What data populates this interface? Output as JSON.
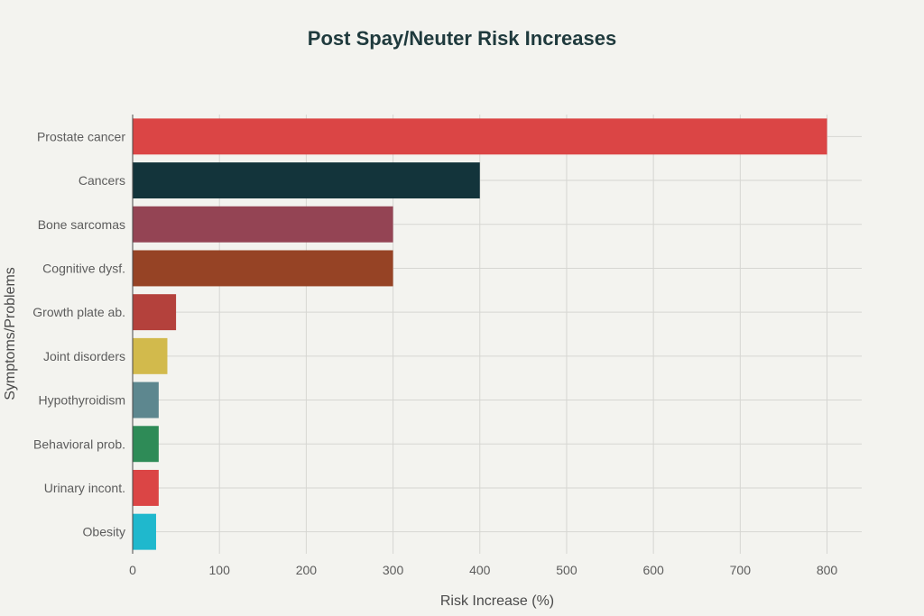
{
  "chart_data": {
    "type": "bar",
    "orientation": "horizontal",
    "title": "Post Spay/Neuter Risk Increases",
    "xlabel": "Risk Increase (%)",
    "ylabel": "Symptoms/Problems",
    "xlim": [
      0,
      840
    ],
    "xticks": [
      0,
      100,
      200,
      300,
      400,
      500,
      600,
      700,
      800
    ],
    "grid": true,
    "categories": [
      "Prostate cancer",
      "Cancers",
      "Bone sarcomas",
      "Cognitive dysf.",
      "Growth plate ab.",
      "Joint disorders",
      "Hypothyroidism",
      "Behavioral prob.",
      "Urinary incont.",
      "Obesity"
    ],
    "values": [
      800,
      400,
      300,
      300,
      50,
      40,
      30,
      30,
      30,
      27
    ],
    "colors": [
      "#db4545",
      "#13343b",
      "#944454",
      "#964325",
      "#b4413c",
      "#d2ba4c",
      "#5d878f",
      "#2e8b57",
      "#db4545",
      "#1fb8cd"
    ]
  }
}
